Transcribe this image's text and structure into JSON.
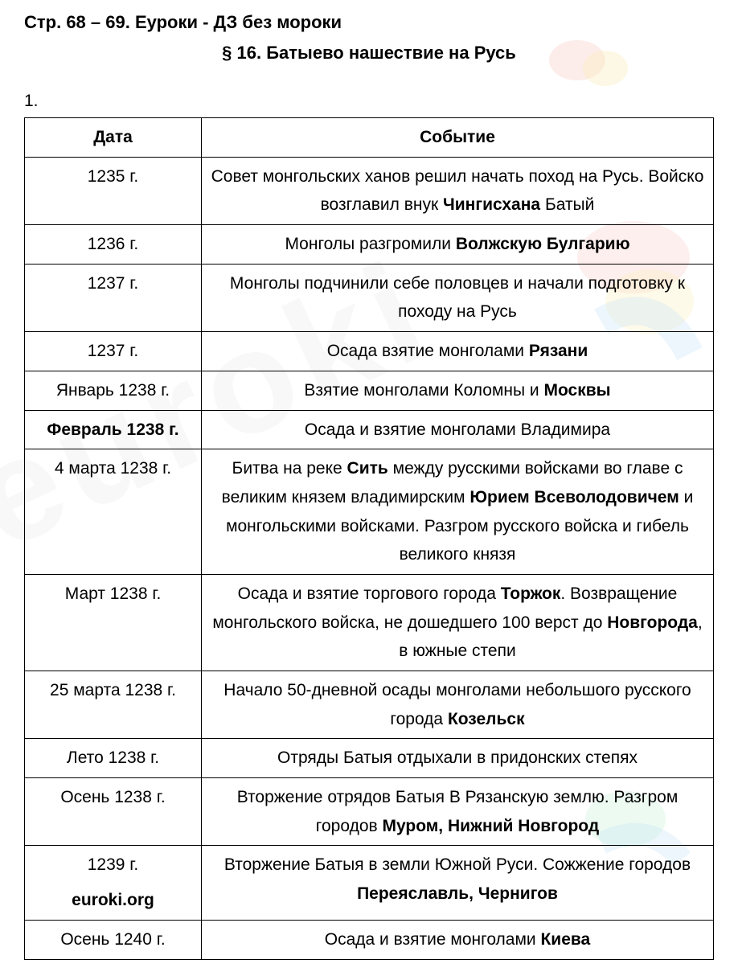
{
  "header": "Стр. 68 – 69. Еуроки - ДЗ без мороки",
  "sectionTitle": "§ 16. Батыево нашествие на Русь",
  "taskNumber": "1.",
  "siteLink": "euroki.org",
  "table": {
    "columns": [
      "Дата",
      "Событие"
    ],
    "rows": [
      {
        "date": "1235 г.",
        "eventParts": [
          {
            "t": "Совет монгольских ханов решил начать поход на Русь. Войско возглавил внук ",
            "b": false
          },
          {
            "t": "Чингисхана",
            "b": true
          },
          {
            "t": " Батый",
            "b": false
          }
        ]
      },
      {
        "date": "1236 г.",
        "eventParts": [
          {
            "t": "Монголы разгромили ",
            "b": false
          },
          {
            "t": "Волжскую Булгарию",
            "b": true
          }
        ]
      },
      {
        "date": "1237 г.",
        "eventParts": [
          {
            "t": "Монголы подчинили себе половцев и начали подготовку к походу на Русь",
            "b": false
          }
        ]
      },
      {
        "date": "1237 г.",
        "eventParts": [
          {
            "t": "Осада взятие монголами ",
            "b": false
          },
          {
            "t": "Рязани",
            "b": true
          }
        ]
      },
      {
        "date": "Январь 1238 г.",
        "eventParts": [
          {
            "t": "Взятие монголами Коломны и ",
            "b": false
          },
          {
            "t": "Москвы",
            "b": true
          }
        ]
      },
      {
        "date": "Февраль 1238 г.",
        "dateBold": true,
        "eventParts": [
          {
            "t": "Осада и взятие монголами Владимира",
            "b": false
          }
        ]
      },
      {
        "date": "4 марта 1238 г.",
        "eventParts": [
          {
            "t": "Битва на реке ",
            "b": false
          },
          {
            "t": "Сить",
            "b": true
          },
          {
            "t": " между русскими войсками во главе с великим князем владимирским ",
            "b": false
          },
          {
            "t": "Юрием Всеволодовичем",
            "b": true
          },
          {
            "t": " и монгольскими войсками. Разгром русского войска и гибель великого князя",
            "b": false
          }
        ]
      },
      {
        "date": "Март 1238 г.",
        "eventParts": [
          {
            "t": "Осада и взятие торгового города ",
            "b": false
          },
          {
            "t": "Торжок",
            "b": true
          },
          {
            "t": ". Возвращение монгольского войска, не дошедшего 100 верст до ",
            "b": false
          },
          {
            "t": "Новгорода",
            "b": true
          },
          {
            "t": ", в южные степи",
            "b": false
          }
        ]
      },
      {
        "date": "25 марта 1238 г.",
        "eventParts": [
          {
            "t": "Начало 50-дневной осады монголами небольшого русского города ",
            "b": false
          },
          {
            "t": "Козельск",
            "b": true
          }
        ]
      },
      {
        "date": "Лето 1238 г.",
        "eventParts": [
          {
            "t": "Отряды Батыя отдыхали в придонских степях",
            "b": false
          }
        ]
      },
      {
        "date": "Осень 1238 г.",
        "eventParts": [
          {
            "t": "Вторжение отрядов Батыя В Рязанскую землю. Разгром городов ",
            "b": false
          },
          {
            "t": "Муром, Нижний Новгород",
            "b": true
          }
        ]
      },
      {
        "date": "1239 г.",
        "showLink": true,
        "eventParts": [
          {
            "t": "Вторжение Батыя в земли Южной Руси. Сожжение городов ",
            "b": false
          },
          {
            "t": "Переяславль, Чернигов",
            "b": true
          }
        ]
      },
      {
        "date": "Осень 1240 г.",
        "eventParts": [
          {
            "t": "Осада и взятие монголами ",
            "b": false
          },
          {
            "t": "Киева",
            "b": true
          }
        ]
      }
    ]
  },
  "watermark": {
    "text": "euroki",
    "colors": {
      "red": "#e74c3c",
      "yellow": "#f1c40f",
      "blue": "#3498db",
      "green": "#2ecc71",
      "gray": "rgba(160,160,160,0.35)"
    }
  }
}
